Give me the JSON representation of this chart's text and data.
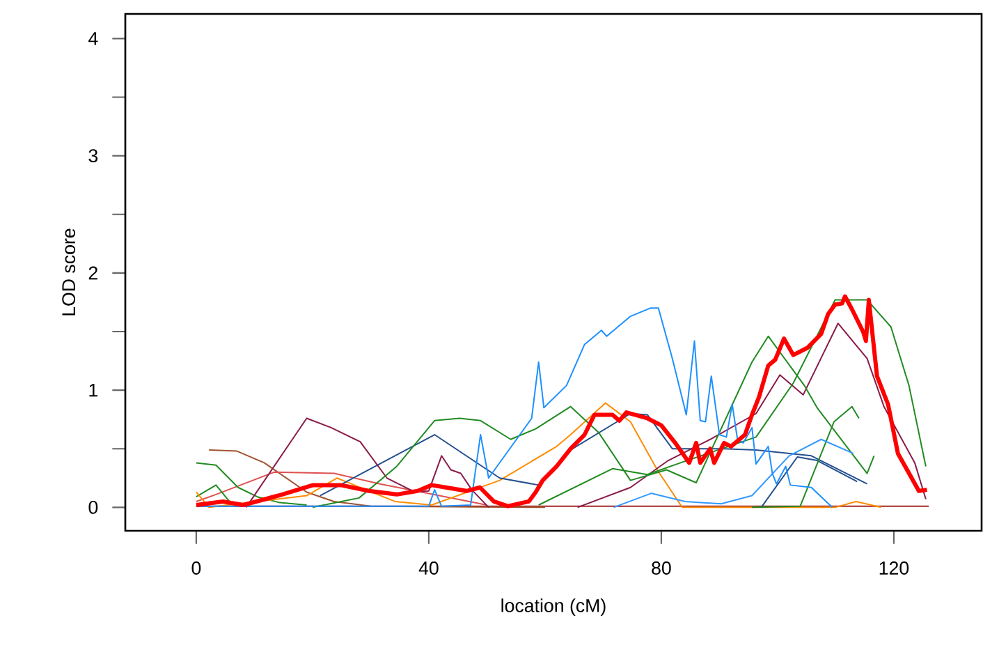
{
  "chart_data": {
    "type": "line",
    "xlabel": "location (cM)",
    "ylabel": "LOD score",
    "xlim": [
      -12.2,
      135.1
    ],
    "ylim": [
      -0.2,
      4.21
    ],
    "xticks": [
      0,
      40,
      80,
      120
    ],
    "yticks": [
      0,
      {
        "value": 0.5,
        "label": null
      },
      1,
      {
        "value": 1.5,
        "label": null
      },
      2,
      {
        "value": 2.5,
        "label": null
      },
      3,
      {
        "value": 3.5,
        "label": null
      },
      4
    ],
    "grid": false,
    "series": [
      {
        "color": "#a52a2a",
        "x": [
          0,
          126
        ],
        "values": [
          0.01,
          0.01
        ]
      },
      {
        "color": "#a0522d",
        "x": [
          2.2,
          7,
          11.7,
          19,
          23.7,
          30,
          60
        ],
        "values": [
          0.49,
          0.48,
          0.38,
          0.13,
          0.05,
          0.01,
          0.0
        ]
      },
      {
        "color": "#e05050",
        "x": [
          0,
          3.4,
          13.4,
          23.7,
          31.6,
          38.8,
          50
        ],
        "values": [
          0.05,
          0.11,
          0.3,
          0.29,
          0.2,
          0.13,
          0.02
        ]
      },
      {
        "color": "#228b22",
        "x": [
          0,
          3.4,
          7.2,
          10.5,
          14.4,
          19
        ],
        "values": [
          0.38,
          0.36,
          0.17,
          0.09,
          0.04,
          0.02
        ]
      },
      {
        "color": "#228b22",
        "x": [
          0,
          3.4,
          6.2
        ],
        "values": [
          0.09,
          0.19,
          0.02
        ]
      },
      {
        "color": "#ff8c00",
        "x": [
          0,
          2.2,
          19,
          24.2,
          30.2,
          34.2,
          40.5,
          52.2,
          62,
          64.4,
          70.4,
          74.7,
          79.3,
          83.6,
          109.9,
          113.5,
          117.8
        ],
        "values": [
          0.13,
          0.0,
          0.1,
          0.25,
          0.13,
          0.05,
          0.02,
          0.23,
          0.52,
          0.62,
          0.89,
          0.73,
          0.32,
          0.0,
          0.0,
          0.05,
          0.0
        ]
      },
      {
        "color": "#24508f",
        "x": [
          21.3,
          41,
          52.2,
          58.9,
          64.4,
          74.7,
          77.6,
          81.9,
          90.8,
          96.3,
          105.8,
          115.4
        ],
        "values": [
          0.1,
          0.62,
          0.25,
          0.19,
          0.49,
          0.8,
          0.79,
          0.5,
          0.5,
          0.49,
          0.44,
          0.2
        ]
      },
      {
        "color": "#24508f",
        "x": [
          97.2,
          103.4,
          106.8,
          113.7
        ],
        "values": [
          0.0,
          0.43,
          0.4,
          0.22
        ]
      },
      {
        "color": "#8b1a4a",
        "x": [
          8.6,
          19,
          23.2,
          28.2,
          32.8,
          37.6,
          40,
          42.2,
          43.8,
          45.5,
          47.4,
          50.3
        ],
        "values": [
          0.0,
          0.76,
          0.68,
          0.56,
          0.25,
          0.13,
          0.14,
          0.44,
          0.32,
          0.29,
          0.15,
          0.0
        ]
      },
      {
        "color": "#8b1a4a",
        "x": [
          65.6,
          74.7,
          81.2,
          88.4,
          96.3,
          100.4,
          104.4,
          110.4,
          115.4,
          118.3,
          123.6,
          125.5
        ],
        "values": [
          0.0,
          0.17,
          0.4,
          0.58,
          0.8,
          1.13,
          0.96,
          1.57,
          1.27,
          0.86,
          0.38,
          0.07
        ]
      },
      {
        "color": "#228b22",
        "x": [
          20,
          28,
          34.5,
          41,
          45.3,
          48.9,
          54.1,
          58.4,
          64.4,
          69.2,
          74.7,
          80.9,
          86,
          95.6,
          98.4,
          104.6,
          106.8,
          115.4,
          116.6
        ],
        "values": [
          0.0,
          0.08,
          0.35,
          0.74,
          0.76,
          0.74,
          0.58,
          0.67,
          0.86,
          0.64,
          0.23,
          0.32,
          0.21,
          1.24,
          1.46,
          1.04,
          0.85,
          0.29,
          0.44
        ]
      },
      {
        "color": "#228b22",
        "x": [
          58.9,
          71.6,
          77.6,
          83.3,
          96.3,
          102.7,
          109.9,
          115.4,
          119.5,
          122.6,
          125.5
        ],
        "values": [
          0.02,
          0.33,
          0.28,
          0.38,
          0.6,
          1.06,
          1.77,
          1.77,
          1.54,
          1.04,
          0.35
        ]
      },
      {
        "color": "#228b22",
        "x": [
          95.6,
          103.9,
          109.7,
          112.8,
          114
        ],
        "values": [
          0.0,
          0.01,
          0.73,
          0.86,
          0.76
        ]
      },
      {
        "color": "#3399ff",
        "x": [
          71.8,
          78.3,
          84.1,
          90.3,
          95.6,
          102,
          107.5,
          113
        ],
        "values": [
          0.0,
          0.12,
          0.05,
          0.03,
          0.1,
          0.44,
          0.58,
          0.46
        ]
      },
      {
        "color": "#1e90ff",
        "x": [
          0,
          40,
          41,
          42.2,
          47.2,
          48.9,
          50.3,
          57.7,
          58.9,
          59.8,
          63.7,
          66.8,
          69.7,
          70.6,
          74.7,
          78.1,
          79.5,
          81.9,
          84.3,
          85.7,
          86.7,
          87.6,
          88.6,
          90,
          91.2,
          92.2,
          93.1,
          94.1,
          95.6,
          96.3,
          98.4,
          99.1,
          99.8,
          101.4,
          102.2,
          105.8,
          109.4
        ],
        "values": [
          0.01,
          0.01,
          0.15,
          0.01,
          0.02,
          0.62,
          0.25,
          0.76,
          1.24,
          0.85,
          1.04,
          1.39,
          1.51,
          1.46,
          1.63,
          1.7,
          1.7,
          1.27,
          0.79,
          1.42,
          0.74,
          0.73,
          1.12,
          0.62,
          0.6,
          0.88,
          0.58,
          0.55,
          0.68,
          0.37,
          0.52,
          0.29,
          0.2,
          0.35,
          0.19,
          0.17,
          0.0
        ]
      },
      {
        "color": "#ff0000",
        "x": [
          0,
          4.6,
          8.1,
          14.1,
          20.1,
          24.9,
          29.7,
          34.5,
          38.1,
          40.5,
          42.9,
          46.5,
          48.8,
          51.2,
          53.6,
          57.2,
          58.4,
          59.6,
          62,
          64.4,
          66.8,
          68.5,
          71.6,
          72.8,
          74,
          77.6,
          80,
          82.4,
          84.8,
          86,
          86.7,
          88.4,
          89.1,
          90.8,
          92,
          94.4,
          95.6,
          96.8,
          98.4,
          99.6,
          101.1,
          102.7,
          105.1,
          107.5,
          108.7,
          109.9,
          111.1,
          111.6,
          112.8,
          114.7,
          115.2,
          115.7,
          117.1,
          119,
          120.7,
          122.4,
          124.3,
          125.7
        ],
        "values": [
          0.02,
          0.05,
          0.02,
          0.1,
          0.19,
          0.19,
          0.14,
          0.11,
          0.14,
          0.19,
          0.17,
          0.14,
          0.17,
          0.05,
          0.01,
          0.05,
          0.13,
          0.23,
          0.35,
          0.5,
          0.62,
          0.79,
          0.79,
          0.74,
          0.81,
          0.76,
          0.7,
          0.55,
          0.38,
          0.55,
          0.38,
          0.5,
          0.38,
          0.55,
          0.52,
          0.62,
          0.79,
          0.94,
          1.21,
          1.26,
          1.44,
          1.3,
          1.36,
          1.48,
          1.65,
          1.73,
          1.74,
          1.8,
          1.69,
          1.5,
          1.42,
          1.77,
          1.12,
          0.88,
          0.46,
          0.31,
          0.14,
          0.15
        ]
      }
    ]
  }
}
